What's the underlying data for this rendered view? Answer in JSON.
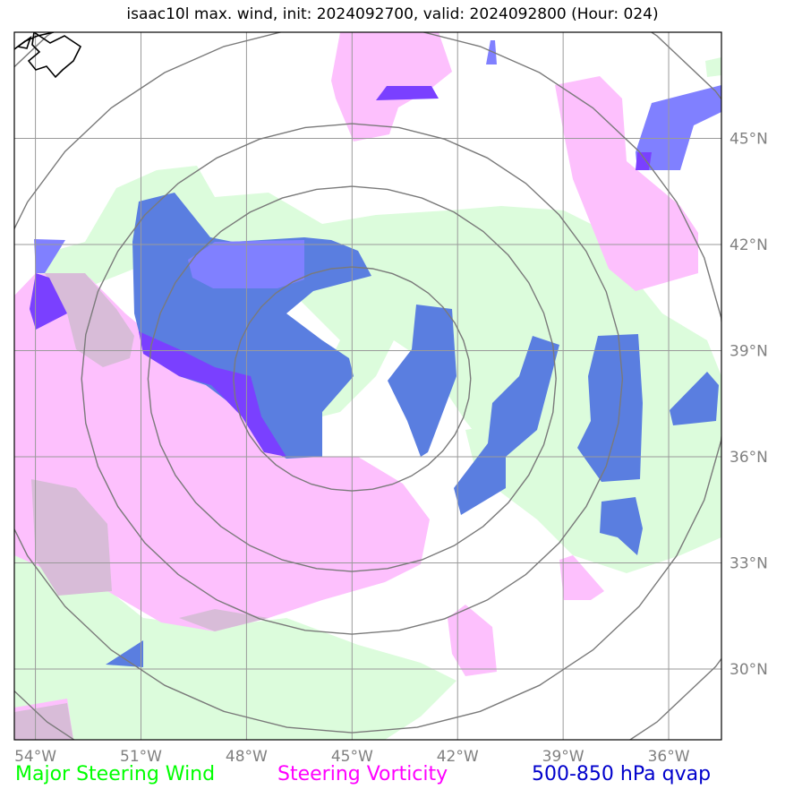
{
  "title": "isaac10l max. wind, init: 2024092700, valid: 2024092800 (Hour: 024)",
  "map": {
    "extent": {
      "lon": [
        -54.6,
        -34.5
      ],
      "lat": [
        28.0,
        48.0
      ]
    },
    "lon_ticks": [
      -54,
      -51,
      -48,
      -45,
      -42,
      -39,
      -36
    ],
    "lat_ticks": [
      30,
      33,
      36,
      39,
      42,
      45
    ],
    "lon_labels": [
      "54°W",
      "51°W",
      "48°W",
      "45°W",
      "42°W",
      "39°W",
      "36°W"
    ],
    "lat_labels": [
      "30°N",
      "33°N",
      "36°N",
      "39°N",
      "42°N",
      "45°N"
    ],
    "range_rings_center": {
      "lon": -45.0,
      "lat": 38.2
    },
    "range_rings_count": 5
  },
  "legend": {
    "wind": {
      "label": "Major Steering Wind",
      "color": "#00ff00"
    },
    "vorticity": {
      "label": "Steering Vorticity",
      "color": "#ff00ff"
    },
    "qvap": {
      "label": "500-850 hPa qvap",
      "color": "#0000cc"
    }
  },
  "fill_colors": {
    "wind": "#dcfcdc",
    "vorticity": "#fdc0fd",
    "qvap": "#5a7ee0",
    "qvap_light": "#8080ff",
    "overlap": "#7a40ff",
    "mixed": "#d8bcd8"
  }
}
